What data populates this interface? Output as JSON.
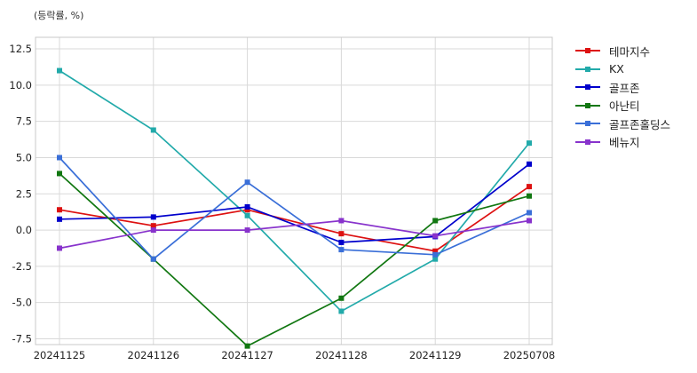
{
  "unit_label": "(등락률, %)",
  "chart_data": {
    "type": "line",
    "title": "",
    "xlabel": "",
    "ylabel": "(등락률, %)",
    "categories": [
      "20241125",
      "20241126",
      "20241127",
      "20241128",
      "20241129",
      "20250708"
    ],
    "ylim": [
      -7.9,
      13.3
    ],
    "yticks": [
      -7.5,
      -5.0,
      -2.5,
      0.0,
      2.5,
      5.0,
      7.5,
      10.0,
      12.5
    ],
    "ytick_labels": [
      "-7.5",
      "-5.0",
      "-2.5",
      "0.0",
      "2.5",
      "5.0",
      "7.5",
      "10.0",
      "12.5"
    ],
    "grid": true,
    "legend_position": "outside-right",
    "series": [
      {
        "name": "테마지수",
        "color": "#dd1111",
        "values": [
          1.4,
          0.3,
          1.4,
          -0.25,
          -1.45,
          3.0
        ]
      },
      {
        "name": "KX",
        "color": "#22aaaa",
        "values": [
          11.0,
          6.9,
          1.0,
          -5.6,
          -2.0,
          6.0
        ]
      },
      {
        "name": "골프존",
        "color": "#0000cc",
        "values": [
          0.75,
          0.9,
          1.6,
          -0.85,
          -0.45,
          4.55
        ]
      },
      {
        "name": "아난티",
        "color": "#117711",
        "values": [
          3.9,
          -2.0,
          -8.0,
          -4.7,
          0.65,
          2.35
        ]
      },
      {
        "name": "골프존홀딩스",
        "color": "#3a6fd8",
        "values": [
          5.0,
          -2.0,
          3.3,
          -1.35,
          -1.7,
          1.2
        ]
      },
      {
        "name": "베뉴지",
        "color": "#8833cc",
        "values": [
          -1.25,
          0.0,
          0.0,
          0.65,
          -0.4,
          0.65
        ]
      }
    ]
  }
}
